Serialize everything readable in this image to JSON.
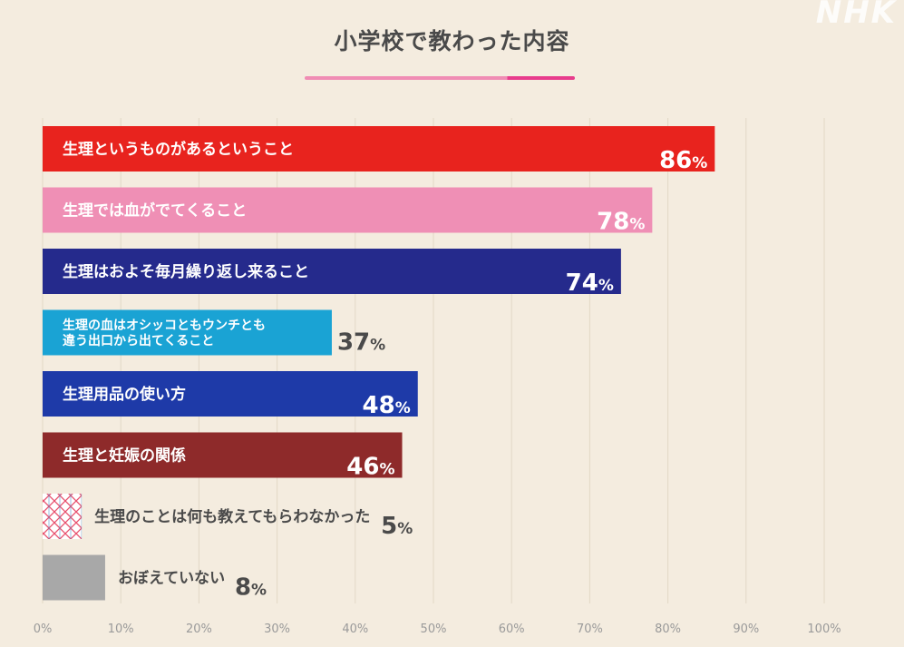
{
  "watermark": "NHK",
  "chart_data": {
    "type": "bar",
    "orientation": "horizontal",
    "title": "小学校で教わった内容",
    "xlim": [
      0,
      100
    ],
    "x_ticks": [
      "0%",
      "10%",
      "20%",
      "30%",
      "40%",
      "50%",
      "60%",
      "70%",
      "80%",
      "90%",
      "100%"
    ],
    "grid": true,
    "value_suffix": "%",
    "bars": [
      {
        "label": "生理というものがあるということ",
        "value": 86,
        "color": "#e8231e",
        "label_inside": true
      },
      {
        "label": "生理では血がでてくること",
        "value": 78,
        "color": "#ef8fb5",
        "label_inside": true
      },
      {
        "label": "生理はおよそ毎月繰り返し来ること",
        "value": 74,
        "color": "#252a8c",
        "label_inside": true
      },
      {
        "label": "生理の血はオシッコともウンチとも\n違う出口から出てくること",
        "value": 37,
        "color": "#1aa3d4",
        "label_inside": true
      },
      {
        "label": "生理用品の使い方",
        "value": 48,
        "color": "#1e3aa8",
        "label_inside": true
      },
      {
        "label": "生理と妊娠の関係",
        "value": 46,
        "color": "#8e2a2a",
        "label_inside": true
      },
      {
        "label": "生理のことは何も教えてもらわなかった",
        "value": 5,
        "color": "#e84f6c",
        "label_inside": false,
        "pattern": "crosshatch"
      },
      {
        "label": "おぼえていない",
        "value": 8,
        "color": "#a8a8a8",
        "label_inside": false
      }
    ]
  }
}
